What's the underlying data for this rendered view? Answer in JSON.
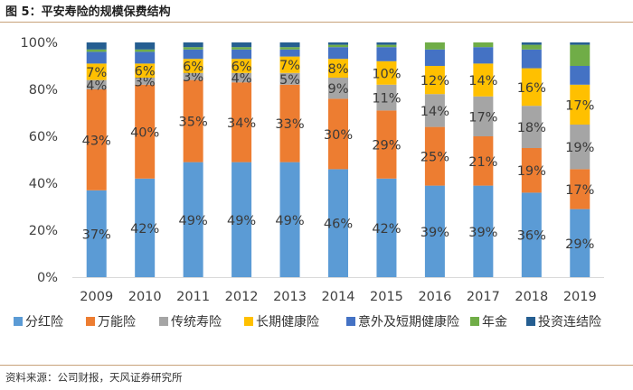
{
  "figure": {
    "title": "图 5：平安寿险的规模保费结构",
    "source": "资料来源：公司财报，天风证券研究所"
  },
  "chart_data": {
    "type": "bar",
    "stacked": true,
    "percent_stacked": true,
    "categories": [
      "2009",
      "2010",
      "2011",
      "2012",
      "2013",
      "2014",
      "2015",
      "2016",
      "2017",
      "2018",
      "2019"
    ],
    "ylim": [
      0,
      100
    ],
    "yticks": [
      "0%",
      "20%",
      "40%",
      "60%",
      "80%",
      "100%"
    ],
    "grid": false,
    "legend_position": "bottom",
    "series": [
      {
        "name": "分红险",
        "color": "#5b9bd5",
        "values": [
          37,
          42,
          49,
          49,
          49,
          46,
          42,
          39,
          39,
          36,
          29
        ],
        "labels": [
          "37%",
          "42%",
          "49%",
          "49%",
          "49%",
          "46%",
          "42%",
          "39%",
          "39%",
          "36%",
          "29%"
        ]
      },
      {
        "name": "万能险",
        "color": "#ed7d31",
        "values": [
          43,
          40,
          35,
          34,
          33,
          30,
          29,
          25,
          21,
          19,
          17
        ],
        "labels": [
          "43%",
          "40%",
          "35%",
          "34%",
          "33%",
          "30%",
          "29%",
          "25%",
          "21%",
          "19%",
          "17%"
        ]
      },
      {
        "name": "传统寿险",
        "color": "#a5a5a5",
        "values": [
          4,
          3,
          3,
          4,
          5,
          9,
          11,
          14,
          17,
          18,
          19
        ],
        "labels": [
          "4%",
          "3%",
          "3%",
          "4%",
          "5%",
          "9%",
          "11%",
          "14%",
          "17%",
          "18%",
          "19%"
        ]
      },
      {
        "name": "长期健康险",
        "color": "#ffc000",
        "values": [
          7,
          6,
          6,
          6,
          7,
          8,
          10,
          12,
          14,
          16,
          17
        ],
        "labels": [
          "7%",
          "6%",
          "6%",
          "6%",
          "7%",
          "8%",
          "10%",
          "12%",
          "14%",
          "16%",
          "17%"
        ]
      },
      {
        "name": "意外及短期健康险",
        "color": "#4472c4",
        "values": [
          5,
          5,
          4,
          4,
          3,
          5,
          6,
          7,
          7,
          8,
          8
        ],
        "labels": []
      },
      {
        "name": "年金",
        "color": "#70ad47",
        "values": [
          1,
          1,
          1,
          1,
          1,
          1,
          1,
          3,
          2,
          2,
          9
        ],
        "labels": []
      },
      {
        "name": "投资连结险",
        "color": "#255e91",
        "values": [
          3,
          3,
          2,
          2,
          2,
          1,
          1,
          0,
          0,
          1,
          1
        ],
        "labels": []
      }
    ]
  }
}
